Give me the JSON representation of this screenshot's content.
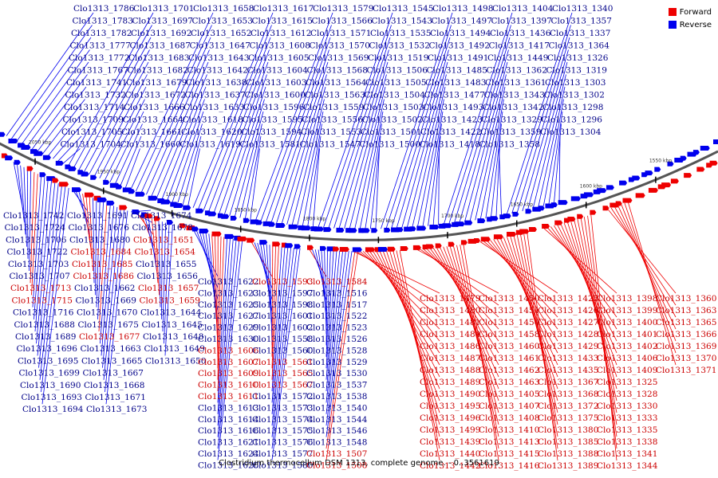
{
  "legend": {
    "forward_label": "Forward",
    "reverse_label": "Reverse",
    "forward_color": "#ee0000",
    "reverse_color": "#0000ee"
  },
  "caption": "Clostridium thermocellum DSM 1313, complete genome. - 0..3561619",
  "axis_ticks": [
    "2050 kbp",
    "1950 kbp",
    "1900 kbp",
    "1850 kbp",
    "1800 kbp",
    "1750 kbp",
    "1700 kbp",
    "1650 kbp",
    "1600 kbp",
    "1550 kbp"
  ],
  "upper_labels": [
    "Clo1313_1786",
    "Clo1313_1783",
    "Clo1313_1782",
    "Clo1313_1777",
    "Clo1313_1772",
    "Clo1313_1767",
    "Clo1313_1741",
    "Clo1313_1732",
    "Clo1313_1714",
    "Clo1313_1709",
    "Clo1313_1705",
    "Clo1313_1704",
    "Clo1313_1701",
    "Clo1313_1697",
    "Clo1313_1692",
    "Clo1313_1687",
    "Clo1313_1683",
    "Clo1313_1682",
    "Clo1313_1679",
    "Clo1313_1672",
    "Clo1313_1666",
    "Clo1313_1664",
    "Clo1313_1661",
    "Clo1313_1660",
    "Clo1313_1658",
    "Clo1313_1653",
    "Clo1313_1652",
    "Clo1313_1647",
    "Clo1313_1643",
    "Clo1313_1642",
    "Clo1313_1638",
    "Clo1313_1637",
    "Clo1313_1633",
    "Clo1313_1618",
    "Clo1313_1620",
    "Clo1313_1619",
    "Clo1313_1617",
    "Clo1313_1615",
    "Clo1313_1612",
    "Clo1313_1608",
    "Clo1313_1605",
    "Clo1313_1604",
    "Clo1313_1603",
    "Clo1313_1600",
    "Clo1313_1596",
    "Clo1313_1595",
    "Clo1313_1594",
    "Clo1313_1581",
    "Clo1313_1579",
    "Clo1313_1566",
    "Clo1313_1571",
    "Clo1313_1570",
    "Clo1313_1569",
    "Clo1313_1568",
    "Clo1313_1564",
    "Clo1313_1563",
    "Clo1313_1559",
    "Clo1313_1556",
    "Clo1313_1553",
    "Clo1313_1547",
    "Clo1313_1545",
    "Clo1313_1543",
    "Clo1313_1535",
    "Clo1313_1532",
    "Clo1313_1519",
    "Clo1313_1506",
    "Clo1313_1505",
    "Clo1313_1504",
    "Clo1313_1503",
    "Clo1313_1502",
    "Clo1313_1501",
    "Clo1313_1500",
    "Clo1313_1498",
    "Clo1313_1497",
    "Clo1313_1494",
    "Clo1313_1492",
    "Clo1313_1491",
    "Clo1313_1485",
    "Clo1313_1483",
    "Clo1313_1477",
    "Clo1313_1493",
    "Clo1313_1423",
    "Clo1313_1422",
    "Clo1313_1418",
    "Clo1313_1404",
    "Clo1313_1397",
    "Clo1313_1436",
    "Clo1313_1417",
    "Clo1313_1449",
    "Clo1313_1362",
    "Clo1313_1361",
    "Clo1313_1343",
    "Clo1313_1342",
    "Clo1313_1329",
    "Clo1313_1359",
    "Clo1313_1358",
    "Clo1313_1340",
    "Clo1313_1357",
    "Clo1313_1337",
    "Clo1313_1364",
    "Clo1313_1326",
    "Clo1313_1319",
    "Clo1313_1303",
    "Clo1313_1302",
    "Clo1313_1298",
    "Clo1313_1296",
    "Clo1313_1304"
  ],
  "lower_left_labels": [
    "Clo1313_1742",
    "Clo1313_1724",
    "Clo1313_1706",
    "Clo1313_1722",
    "Clo1313_1703",
    "Clo1313_1707",
    "Clo1313_1713",
    "Clo1313_1715",
    "Clo1313_1716",
    "Clo1313_1688",
    "Clo1313_1689",
    "Clo1313_1696",
    "Clo1313_1695",
    "Clo1313_1699",
    "Clo1313_1690",
    "Clo1313_1693",
    "Clo1313_1694",
    "Clo1313_1691",
    "Clo1313_1676",
    "Clo1313_1680",
    "Clo1313_1684",
    "Clo1313_1685",
    "Clo1313_1686",
    "Clo1313_1662",
    "Clo1313_1669",
    "Clo1313_1670",
    "Clo1313_1675",
    "Clo1313_1677",
    "Clo1313_1663",
    "Clo1313_1665",
    "Clo1313_1667",
    "Clo1313_1668",
    "Clo1313_1671",
    "Clo1313_1673",
    "Clo1313_1674",
    "Clo1313_1678",
    "Clo1313_1651",
    "Clo1313_1654",
    "Clo1313_1655",
    "Clo1313_1656",
    "Clo1313_1657",
    "Clo1313_1659",
    "Clo1313_1644",
    "Clo1313_1645",
    "Clo1313_1648",
    "Clo1313_1649",
    "Clo1313_1650"
  ],
  "lower_mid_labels": [
    "Clo1313_1622",
    "Clo1313_1623",
    "Clo1313_1625",
    "Clo1313_1627",
    "Clo1313_1629",
    "Clo1313_1630",
    "Clo1313_1606",
    "Clo1313_1607",
    "Clo1313_1609",
    "Clo1313_1610",
    "Clo1313_1611",
    "Clo1313_1613",
    "Clo1313_1614",
    "Clo1313_1616",
    "Clo1313_1621",
    "Clo1313_1624",
    "Clo1313_1626",
    "Clo1313_1628",
    "Clo1313_1631",
    "Clo1313_1593",
    "Clo1313_1597",
    "Clo1313_1598",
    "Clo1313_1601",
    "Clo1313_1602",
    "Clo1313_1558",
    "Clo1313_1560",
    "Clo1313_1561",
    "Clo1313_1565",
    "Clo1313_1567",
    "Clo1313_1572",
    "Clo1313_1573",
    "Clo1313_1574",
    "Clo1313_1575",
    "Clo1313_1576",
    "Clo1313_1577",
    "Clo1313_1580",
    "Clo1313_1582",
    "Clo1313_1583",
    "Clo1313_1584",
    "Clo1313_1516",
    "Clo1313_1517",
    "Clo1313_1522",
    "Clo1313_1523",
    "Clo1313_1526",
    "Clo1313_1528",
    "Clo1313_1529",
    "Clo1313_1530",
    "Clo1313_1537",
    "Clo1313_1538",
    "Clo1313_1540",
    "Clo1313_1544",
    "Clo1313_1546",
    "Clo1313_1548",
    "Clo1313_1507",
    "Clo1313_1508"
  ],
  "lower_right_labels": [
    "Clo1313_1479",
    "Clo1313_1480",
    "Clo1313_1481",
    "Clo1313_1484",
    "Clo1313_1486",
    "Clo1313_1487",
    "Clo1313_1488",
    "Clo1313_1489",
    "Clo1313_1490",
    "Clo1313_1495",
    "Clo1313_1496",
    "Clo1313_1499",
    "Clo1313_1439",
    "Clo1313_1440",
    "Clo1313_1442",
    "Clo1313_1444",
    "Clo1313_1446",
    "Clo1313_1447",
    "Clo1313_1448",
    "Clo1313_1450",
    "Clo1313_1451",
    "Clo1313_1454",
    "Clo1313_1458",
    "Clo1313_1460",
    "Clo1313_1461",
    "Clo1313_1462",
    "Clo1313_1463",
    "Clo1313_1405",
    "Clo1313_1407",
    "Clo1313_1408",
    "Clo1313_1410",
    "Clo1313_1413",
    "Clo1313_1415",
    "Clo1313_1416",
    "Clo1313_1419",
    "Clo1313_1420",
    "Clo1313_1421",
    "Clo1313_1424",
    "Clo1313_1425",
    "Clo1313_1426",
    "Clo1313_1427",
    "Clo1313_1428",
    "Clo1313_1429",
    "Clo1313_1433",
    "Clo1313_1435",
    "Clo1313_1367",
    "Clo1313_1368",
    "Clo1313_1372",
    "Clo1313_1375",
    "Clo1313_1380",
    "Clo1313_1385",
    "Clo1313_1388",
    "Clo1313_1389",
    "Clo1313_1390",
    "Clo1313_1391",
    "Clo1313_1392",
    "Clo1313_1393",
    "Clo1313_1398",
    "Clo1313_1399",
    "Clo1313_1400",
    "Clo1313_1401",
    "Clo1313_1402",
    "Clo1313_1406",
    "Clo1313_1409",
    "Clo1313_1325",
    "Clo1313_1328",
    "Clo1313_1330",
    "Clo1313_1333",
    "Clo1313_1335",
    "Clo1313_1338",
    "Clo1313_1341",
    "Clo1313_1344",
    "Clo1313_1346",
    "Clo1313_1347",
    "Clo1313_1353",
    "Clo1313_1355",
    "Clo1313_1360",
    "Clo1313_1363",
    "Clo1313_1365",
    "Clo1313_1366",
    "Clo1313_1369",
    "Clo1313_1370",
    "Clo1313_1371"
  ]
}
